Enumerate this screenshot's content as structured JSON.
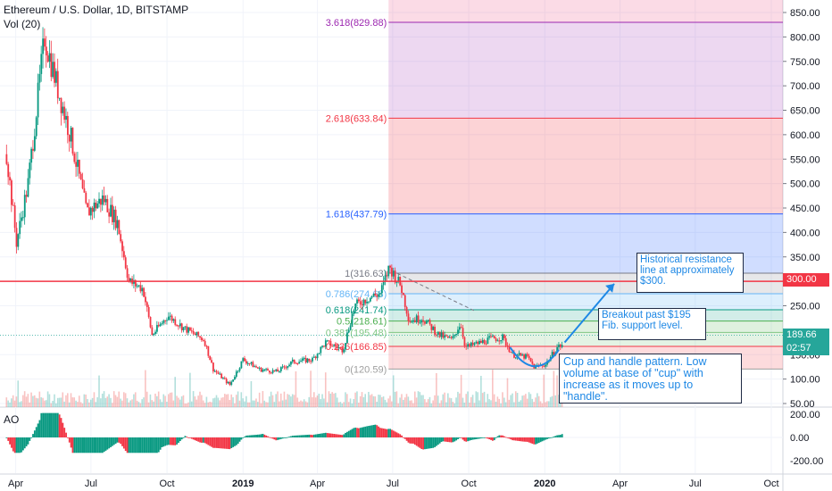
{
  "chart_data": {
    "type": "candlestick",
    "title": "Ethereum / U.S. Dollar, 1D, BITSTAMP",
    "volume_label": "Vol (20)",
    "indicator_label": "AO",
    "x_ticks": [
      "Apr",
      "Jul",
      "Oct",
      "2019",
      "Apr",
      "Jul",
      "Oct",
      "2020",
      "Apr",
      "Jul",
      "Oct"
    ],
    "y_ticks": [
      "850.00",
      "800.00",
      "750.00",
      "700.00",
      "650.00",
      "600.00",
      "550.00",
      "500.00",
      "450.00",
      "400.00",
      "350.00",
      "250.00",
      "150.00",
      "100.00",
      "50.00"
    ],
    "ylim": [
      40,
      870
    ],
    "ao_ticks": [
      "200.00",
      "0.00",
      "-200.00"
    ],
    "ao_range": [
      -250,
      250
    ],
    "price_series": [
      {
        "date": "2018-03-20",
        "price": 560
      },
      {
        "date": "2018-04-01",
        "price": 380
      },
      {
        "date": "2018-04-15",
        "price": 500
      },
      {
        "date": "2018-05-05",
        "price": 800
      },
      {
        "date": "2018-05-20",
        "price": 700
      },
      {
        "date": "2018-06-05",
        "price": 600
      },
      {
        "date": "2018-06-25",
        "price": 440
      },
      {
        "date": "2018-07-15",
        "price": 470
      },
      {
        "date": "2018-08-01",
        "price": 420
      },
      {
        "date": "2018-08-15",
        "price": 300
      },
      {
        "date": "2018-09-01",
        "price": 285
      },
      {
        "date": "2018-09-12",
        "price": 190
      },
      {
        "date": "2018-10-01",
        "price": 230
      },
      {
        "date": "2018-10-20",
        "price": 205
      },
      {
        "date": "2018-11-14",
        "price": 180
      },
      {
        "date": "2018-11-25",
        "price": 120
      },
      {
        "date": "2018-12-15",
        "price": 88
      },
      {
        "date": "2018-12-31",
        "price": 140
      },
      {
        "date": "2019-01-20",
        "price": 120
      },
      {
        "date": "2019-02-10",
        "price": 115
      },
      {
        "date": "2019-03-01",
        "price": 135
      },
      {
        "date": "2019-03-25",
        "price": 140
      },
      {
        "date": "2019-04-10",
        "price": 175
      },
      {
        "date": "2019-05-01",
        "price": 160
      },
      {
        "date": "2019-05-15",
        "price": 250
      },
      {
        "date": "2019-05-30",
        "price": 265
      },
      {
        "date": "2019-06-15",
        "price": 275
      },
      {
        "date": "2019-06-26",
        "price": 330
      },
      {
        "date": "2019-07-10",
        "price": 290
      },
      {
        "date": "2019-07-20",
        "price": 220
      },
      {
        "date": "2019-08-05",
        "price": 225
      },
      {
        "date": "2019-08-25",
        "price": 190
      },
      {
        "date": "2019-09-10",
        "price": 180
      },
      {
        "date": "2019-09-20",
        "price": 215
      },
      {
        "date": "2019-09-26",
        "price": 165
      },
      {
        "date": "2019-10-15",
        "price": 175
      },
      {
        "date": "2019-10-26",
        "price": 182
      },
      {
        "date": "2019-11-10",
        "price": 185
      },
      {
        "date": "2019-11-22",
        "price": 150
      },
      {
        "date": "2019-12-10",
        "price": 145
      },
      {
        "date": "2019-12-18",
        "price": 125
      },
      {
        "date": "2020-01-01",
        "price": 130
      },
      {
        "date": "2020-01-15",
        "price": 165
      },
      {
        "date": "2020-01-22",
        "price": 170
      }
    ],
    "fibonacci": {
      "start_date": "2019-06-26",
      "levels": [
        {
          "ratio": "0",
          "price": 120.59,
          "label": "0(120.59)",
          "color": "#9e9e9e"
        },
        {
          "ratio": "0.236",
          "price": 166.85,
          "label": "0.236(166.85)",
          "color": "#f23645"
        },
        {
          "ratio": "0.382",
          "price": 195.48,
          "label": "0.382(195.48)",
          "color": "#81c784"
        },
        {
          "ratio": "0.5",
          "price": 218.61,
          "label": "0.5(218.61)",
          "color": "#4caf50"
        },
        {
          "ratio": "0.618",
          "price": 241.74,
          "label": "0.618(241.74)",
          "color": "#089981"
        },
        {
          "ratio": "0.786",
          "price": 274.68,
          "label": "0.786(274.68)",
          "color": "#64b5f6"
        },
        {
          "ratio": "1",
          "price": 316.63,
          "label": "1(316.63)",
          "color": "#787b86"
        },
        {
          "ratio": "1.618",
          "price": 437.79,
          "label": "1.618(437.79)",
          "color": "#2962ff"
        },
        {
          "ratio": "2.618",
          "price": 633.84,
          "label": "2.618(633.84)",
          "color": "#f23645"
        },
        {
          "ratio": "3.618",
          "price": 829.88,
          "label": "3.618(829.88)",
          "color": "#9c27b0"
        }
      ]
    },
    "resistance": {
      "price": 300,
      "label": "300.00",
      "color": "#f23645"
    },
    "last_price": {
      "price": 189.66,
      "label": "189.66",
      "countdown": "02:57"
    },
    "annotations": [
      {
        "id": "resistance",
        "text": "Historical resistance line at approximately $300."
      },
      {
        "id": "breakout",
        "text": "Breakout past $195 Fib. support level."
      },
      {
        "id": "cup",
        "text": "Cup and handle pattern. Low volume at base of \"cup\" with increase as it moves up to \"handle\"."
      }
    ]
  }
}
